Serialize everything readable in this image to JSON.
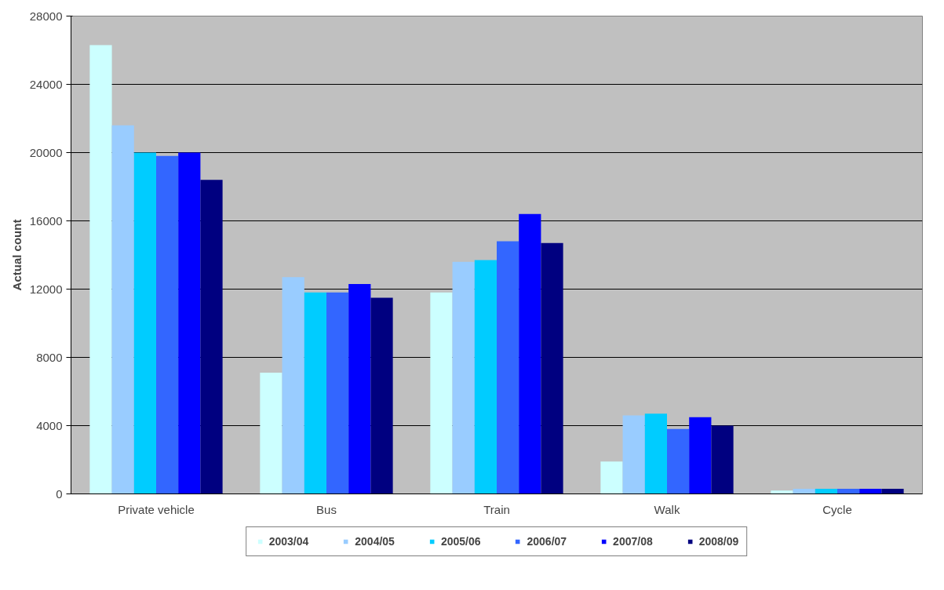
{
  "chart_data": {
    "type": "bar",
    "ylabel": "Actual count",
    "categories": [
      "Private vehicle",
      "Bus",
      "Train",
      "Walk",
      "Cycle"
    ],
    "series": [
      {
        "name": "2003/04",
        "color": "#ccffff",
        "values": [
          26300,
          7100,
          11800,
          1900,
          200
        ]
      },
      {
        "name": "2004/05",
        "color": "#99ccff",
        "values": [
          21600,
          12700,
          13600,
          4600,
          300
        ]
      },
      {
        "name": "2005/06",
        "color": "#00ccff",
        "values": [
          20000,
          11800,
          13700,
          4700,
          300
        ]
      },
      {
        "name": "2006/07",
        "color": "#3366ff",
        "values": [
          19800,
          11800,
          14800,
          3800,
          300
        ]
      },
      {
        "name": "2007/08",
        "color": "#0000ff",
        "values": [
          20000,
          12300,
          16400,
          4500,
          300
        ]
      },
      {
        "name": "2008/09",
        "color": "#000080",
        "values": [
          18400,
          11500,
          14700,
          4000,
          300
        ]
      }
    ],
    "ylim": [
      0,
      28000
    ],
    "yticks": [
      0,
      4000,
      8000,
      12000,
      16000,
      20000,
      24000,
      28000
    ],
    "grid": "y",
    "legend": "bottom"
  }
}
